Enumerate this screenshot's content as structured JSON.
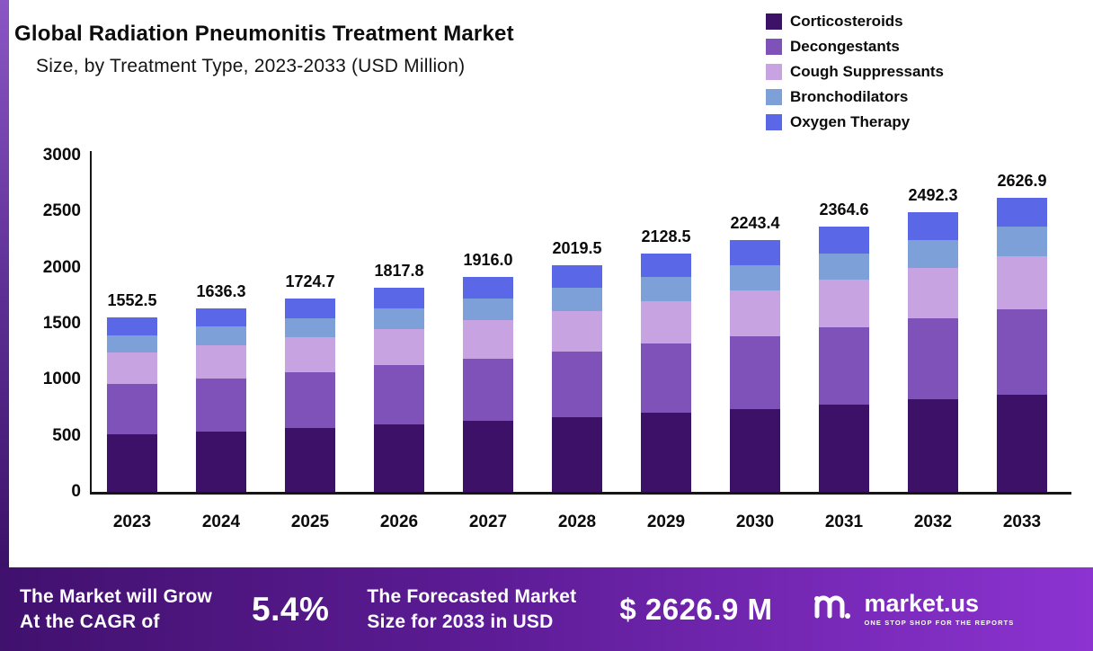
{
  "title": {
    "line1": "Global Radiation Pneumonitis Treatment Market",
    "line2": "Size, by Treatment Type, 2023-2033 (USD Million)"
  },
  "chart_data": {
    "type": "bar",
    "stacked": true,
    "title": "Global Radiation Pneumonitis Treatment Market Size, by Treatment Type, 2023-2033 (USD Million)",
    "categories": [
      "2023",
      "2024",
      "2025",
      "2026",
      "2027",
      "2028",
      "2029",
      "2030",
      "2031",
      "2032",
      "2033"
    ],
    "totals": [
      1552.5,
      1636.3,
      1724.7,
      1817.8,
      1916.0,
      2019.5,
      2128.5,
      2243.4,
      2364.6,
      2492.3,
      2626.9
    ],
    "total_labels": [
      "1552.5",
      "1636.3",
      "1724.7",
      "1817.8",
      "1916.0",
      "2019.5",
      "2128.5",
      "2243.4",
      "2364.6",
      "2492.3",
      "2626.9"
    ],
    "series": [
      {
        "name": "Corticosteroids",
        "color": "#3e1169",
        "values": [
          512.3,
          540.0,
          569.2,
          599.9,
          632.3,
          666.4,
          702.4,
          740.3,
          780.3,
          822.5,
          866.9
        ]
      },
      {
        "name": "Decongestants",
        "color": "#7f52ba",
        "values": [
          450.2,
          474.5,
          500.2,
          527.2,
          555.6,
          585.7,
          617.3,
          650.6,
          685.7,
          722.8,
          761.8
        ]
      },
      {
        "name": "Cough Suppressants",
        "color": "#c7a3e2",
        "values": [
          279.5,
          294.5,
          310.4,
          327.2,
          344.9,
          363.5,
          383.1,
          403.8,
          425.6,
          448.6,
          472.8
        ]
      },
      {
        "name": "Bronchodilators",
        "color": "#7ea0d8",
        "values": [
          155.3,
          163.6,
          172.5,
          181.8,
          191.6,
          202.0,
          212.9,
          224.3,
          236.5,
          249.2,
          262.7
        ]
      },
      {
        "name": "Oxygen Therapy",
        "color": "#5a67e6",
        "values": [
          155.3,
          163.6,
          172.5,
          181.8,
          191.6,
          202.0,
          212.9,
          224.3,
          236.5,
          249.2,
          262.7
        ]
      }
    ],
    "ylim": [
      0,
      3000
    ],
    "yticks": [
      "0",
      "500",
      "1000",
      "1500",
      "2000",
      "2500",
      "3000"
    ],
    "xlabel": "",
    "ylabel": "",
    "grid": false,
    "legend_position": "top-right"
  },
  "banner": {
    "cagr_line1": "The Market will Grow",
    "cagr_line2": "At the CAGR of",
    "cagr_value": "5.4%",
    "forecast_line1": "The Forecasted Market",
    "forecast_line2": "Size for 2033 in USD",
    "forecast_value": "$ 2626.9 M",
    "brand_name": "market.us",
    "brand_tagline": "ONE STOP SHOP FOR THE REPORTS"
  },
  "colors": {
    "banner_gradient_start": "#41116e",
    "banner_gradient_end": "#8c33d1",
    "axis": "#161616",
    "text": "#0a0a0a"
  }
}
